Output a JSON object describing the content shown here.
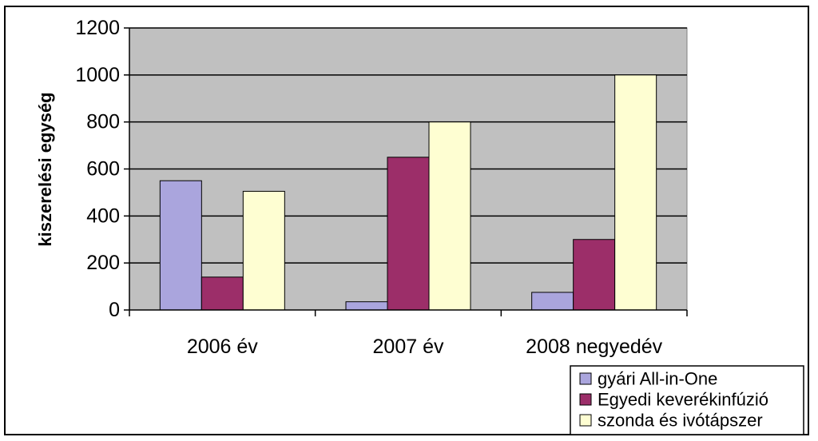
{
  "chart_data": {
    "type": "bar",
    "ylabel": "kiszerelési egység",
    "xlabel": "",
    "title": "",
    "ylim": [
      0,
      1200
    ],
    "yticks": [
      0,
      200,
      400,
      600,
      800,
      1000,
      1200
    ],
    "categories": [
      "2006 év",
      "2007 év",
      "2008 negyedév"
    ],
    "series": [
      {
        "name": "gyári All-in-One",
        "color": "#aaa5dd",
        "values": [
          550,
          35,
          75
        ]
      },
      {
        "name": "Egyedi keverékinfúzió",
        "color": "#9c2e69",
        "values": [
          140,
          650,
          300
        ]
      },
      {
        "name": "szonda és ivótápszer",
        "color": "#fefed2",
        "values": [
          505,
          800,
          1000
        ]
      }
    ],
    "grid": true,
    "plot_background": "#c0c0c0",
    "legend": "bottom-right"
  }
}
